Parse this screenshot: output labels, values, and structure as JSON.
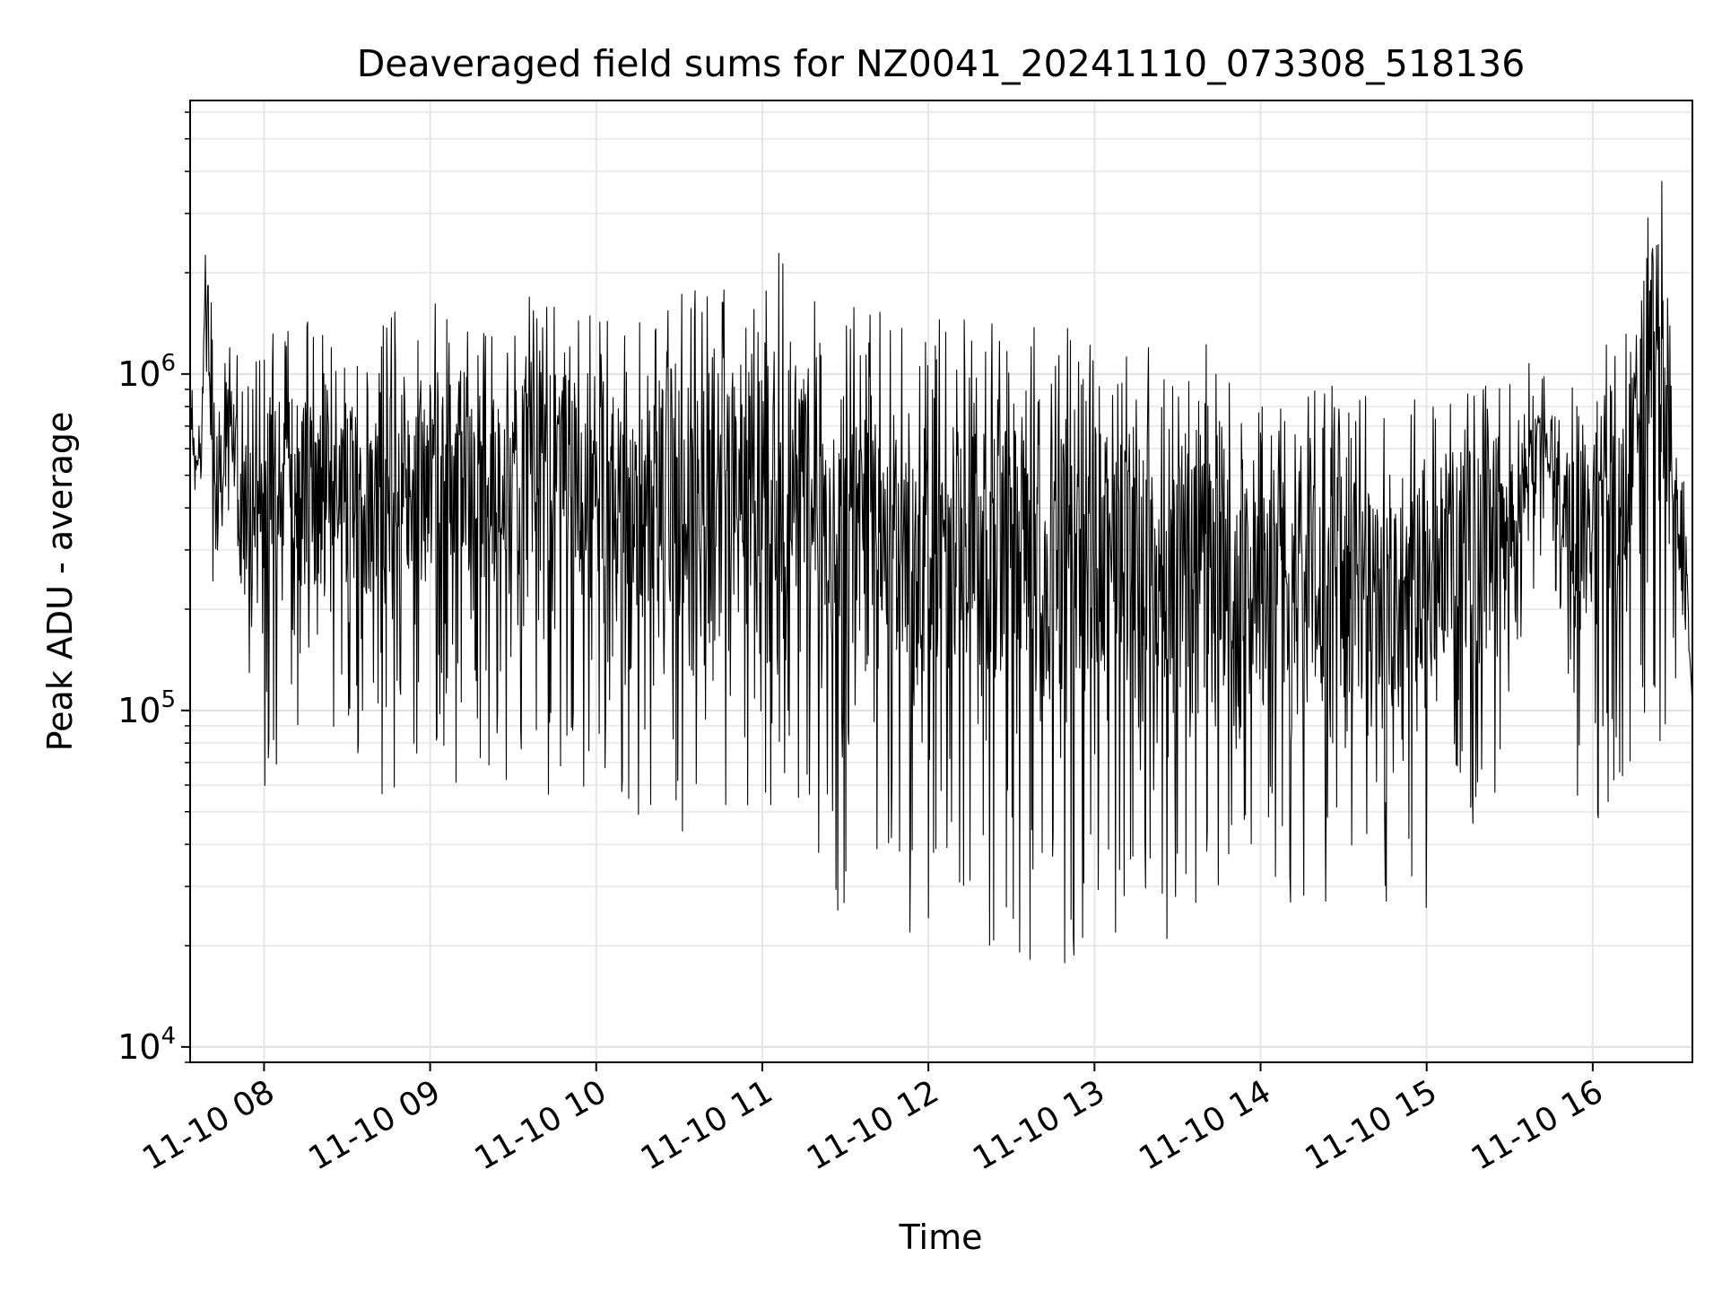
{
  "chart_data": {
    "type": "line",
    "title": "Deaveraged field sums for NZ0041_20241110_073308_518136",
    "xlabel": "Time",
    "ylabel": "Peak ADU - average",
    "x_range": [
      "2024-11-10 07:33:08",
      "2024-11-10 16:36:00"
    ],
    "xlim_hours": [
      7.555,
      16.6
    ],
    "ylim": [
      9000,
      6500000
    ],
    "yscale": "log",
    "grid": true,
    "legend": "none",
    "line_color": "#000000",
    "x_ticks": [
      {
        "hour": 8,
        "label": "11-10 08"
      },
      {
        "hour": 9,
        "label": "11-10 09"
      },
      {
        "hour": 10,
        "label": "11-10 10"
      },
      {
        "hour": 11,
        "label": "11-10 11"
      },
      {
        "hour": 12,
        "label": "11-10 12"
      },
      {
        "hour": 13,
        "label": "11-10 13"
      },
      {
        "hour": 14,
        "label": "11-10 14"
      },
      {
        "hour": 15,
        "label": "11-10 15"
      },
      {
        "hour": 16,
        "label": "11-10 16"
      }
    ],
    "y_ticks": [
      {
        "value": 10000,
        "base": "10",
        "exp": "4"
      },
      {
        "value": 100000,
        "base": "10",
        "exp": "5"
      },
      {
        "value": 1000000,
        "base": "10",
        "exp": "6"
      }
    ],
    "series": [
      {
        "x_hours": [
          7.56,
          7.6,
          7.66,
          7.7,
          7.72,
          7.74,
          7.78,
          7.8,
          7.86,
          7.9,
          7.95,
          8.0,
          8.06,
          8.1,
          8.13,
          8.18,
          8.24,
          8.3,
          8.4,
          8.5,
          8.6,
          8.66,
          8.72,
          8.8,
          8.9,
          9.0,
          9.06,
          9.12,
          9.2,
          9.3,
          9.4,
          9.5,
          9.6,
          9.7,
          9.8,
          9.9,
          10.0,
          10.05,
          10.1,
          10.2,
          10.3,
          10.4,
          10.5,
          10.6,
          10.7,
          10.8,
          10.9,
          11.0,
          11.1,
          11.2,
          11.3,
          11.4,
          11.5,
          11.6,
          11.7,
          11.8,
          11.9,
          12.0,
          12.1,
          12.2,
          12.3,
          12.4,
          12.5,
          12.6,
          12.7,
          12.8,
          12.9,
          13.0,
          13.1,
          13.2,
          13.3,
          13.4,
          13.5,
          13.6,
          13.7,
          13.8,
          13.9,
          14.0,
          14.1,
          14.2,
          14.3,
          14.4,
          14.5,
          14.6,
          14.7,
          14.8,
          14.9,
          15.0,
          15.1,
          15.2,
          15.3,
          15.4,
          15.5,
          15.6,
          15.7,
          15.8,
          15.9,
          16.0,
          16.1,
          16.2,
          16.28,
          16.35,
          16.42,
          16.46,
          16.5,
          16.55,
          16.6
        ],
        "y_high": [
          1000000,
          600000,
          3700000,
          1300000,
          800000,
          1100000,
          1300000,
          1850000,
          900000,
          1100000,
          1200000,
          1400000,
          1650000,
          1700000,
          1400000,
          1350000,
          1700000,
          1350000,
          1300000,
          1500000,
          1200000,
          1300000,
          1400000,
          1600000,
          1700000,
          1700000,
          1650000,
          1600000,
          1650000,
          1600000,
          1550000,
          1500000,
          1750000,
          1650000,
          1600000,
          1550000,
          1750000,
          1650000,
          1500000,
          1450000,
          1550000,
          1600000,
          1750000,
          1850000,
          1700000,
          1900000,
          1800000,
          1900000,
          2400000,
          1700000,
          1650000,
          1650000,
          1600000,
          1600000,
          1600000,
          1500000,
          1500000,
          1500000,
          1450000,
          1500000,
          1450000,
          1450000,
          1400000,
          1450000,
          1400000,
          1450000,
          1400000,
          1400000,
          1350000,
          1350000,
          1300000,
          1250000,
          1300000,
          1300000,
          1200000,
          1100000,
          1050000,
          1050000,
          1050000,
          1000000,
          950000,
          950000,
          900000,
          900000,
          900000,
          950000,
          900000,
          900000,
          900000,
          950000,
          900000,
          950000,
          950000,
          1100000,
          1000000,
          1000000,
          1050000,
          1150000,
          1250000,
          1400000,
          2400000,
          4700000,
          3700000,
          1900000,
          800000,
          600000,
          100000
        ],
        "y_low": [
          450000,
          390000,
          420000,
          170000,
          85000,
          120000,
          200000,
          140000,
          90000,
          48000,
          90000,
          58000,
          60000,
          42000,
          70000,
          60000,
          62000,
          48000,
          80000,
          72000,
          75000,
          65000,
          52000,
          58000,
          60000,
          80000,
          75000,
          56000,
          62000,
          58000,
          60000,
          62000,
          70000,
          58000,
          45000,
          50000,
          58000,
          55000,
          43000,
          48000,
          45000,
          55000,
          42000,
          33000,
          38000,
          32000,
          45000,
          40000,
          36000,
          30000,
          32000,
          28000,
          22000,
          21000,
          24000,
          25000,
          20000,
          15000,
          22000,
          19000,
          20000,
          17000,
          13500,
          18000,
          12000,
          13000,
          15000,
          15000,
          14000,
          13000,
          18000,
          13500,
          19000,
          22000,
          24000,
          22000,
          24000,
          25000,
          23000,
          22000,
          22000,
          25000,
          22000,
          30000,
          26000,
          22000,
          24000,
          20000,
          36000,
          40000,
          44000,
          55000,
          70000,
          160000,
          300000,
          110000,
          50000,
          48000,
          40000,
          60000,
          70000,
          75000,
          80000,
          90000,
          100000,
          100000,
          100000
        ]
      }
    ]
  }
}
